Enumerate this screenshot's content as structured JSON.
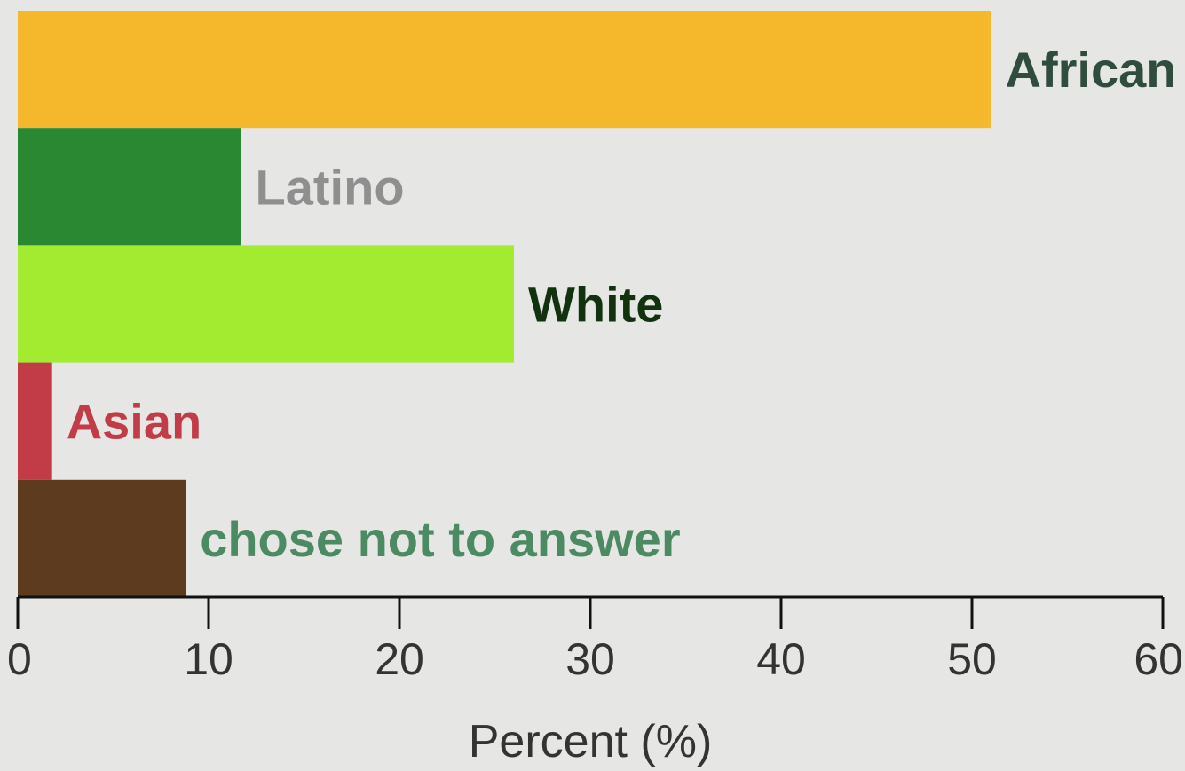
{
  "chart_data": {
    "type": "bar",
    "orientation": "horizontal",
    "categories": [
      "African A",
      "Latino",
      "White",
      "Asian",
      "chose not to answer"
    ],
    "values": [
      51,
      11.7,
      26,
      1.8,
      8.8
    ],
    "bar_colors": [
      "#f5b82c",
      "#2a8732",
      "#a3eb31",
      "#c13c46",
      "#5c3b1f"
    ],
    "label_colors": [
      "#2f4c3c",
      "#8f8f8f",
      "#12310f",
      "#c13c46",
      "#4c8a63"
    ],
    "xlabel": "Percent (%)",
    "xlim": [
      0,
      60
    ],
    "xticks": [
      0,
      10,
      20,
      30,
      40,
      50,
      60
    ],
    "xtick_labels": [
      "0",
      "10",
      "20",
      "30",
      "40",
      "50",
      "60"
    ],
    "grid": false,
    "legend": "none"
  }
}
